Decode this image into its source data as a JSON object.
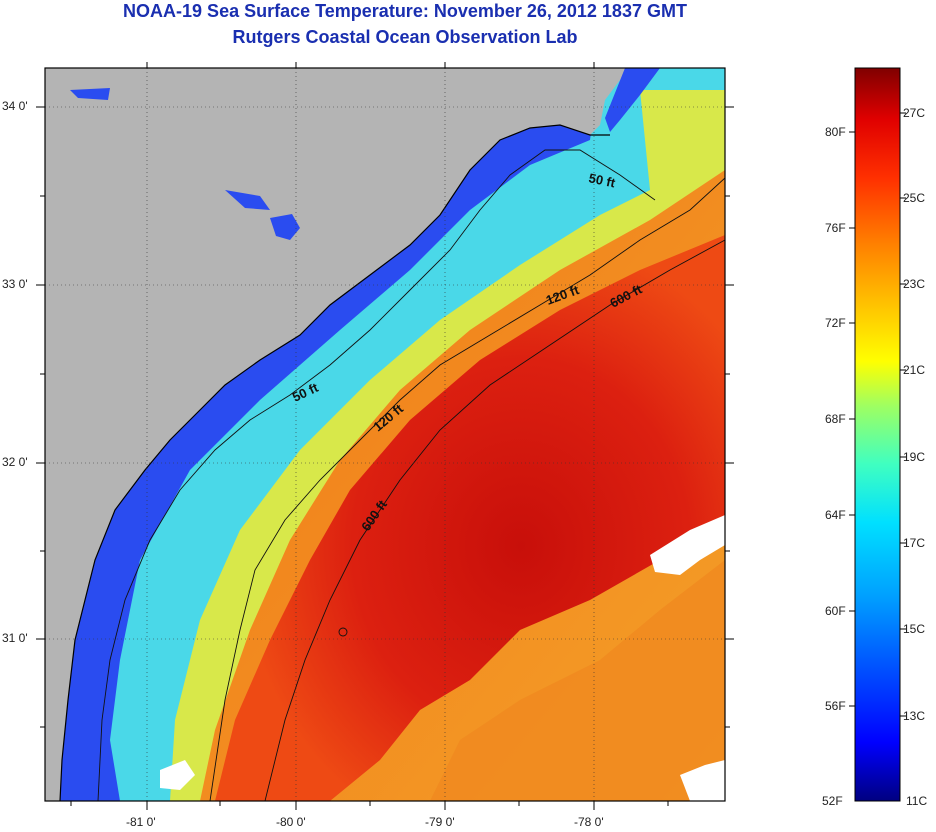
{
  "header": {
    "title": "NOAA-19 Sea Surface Temperature:  November 26, 2012 1837 GMT",
    "subtitle": "Rutgers Coastal Ocean Observation Lab"
  },
  "map": {
    "lat_labels": [
      "34 0'",
      "33 0'",
      "32 0'",
      "31 0'"
    ],
    "lon_labels": [
      "-81 0'",
      "-80 0'",
      "-79 0'",
      "-78 0'"
    ],
    "isobath_labels": [
      "50 ft",
      "50 ft",
      "120 ft",
      "120 ft",
      "600 ft",
      "600 ft"
    ],
    "colors": {
      "land": "#b4b4b4",
      "cloud": "#ffffff",
      "coast_nearshore": "#1e3cff",
      "shelf": "#46e6e6",
      "midshelf": "#e6e646",
      "gulfstream": "#dc1e0a",
      "offshore": "#f08c1e"
    }
  },
  "colorbar": {
    "fahrenheit_labels": [
      "80F",
      "76F",
      "72F",
      "68F",
      "64F",
      "60F",
      "56F",
      "52F"
    ],
    "celsius_labels": [
      "27C",
      "25C",
      "23C",
      "21C",
      "19C",
      "17C",
      "15C",
      "13C",
      "11C"
    ],
    "gradient": [
      "#000080",
      "#0000ff",
      "#0050ff",
      "#00a0ff",
      "#00e0ff",
      "#40ffc0",
      "#a0ff60",
      "#ffff00",
      "#ffc000",
      "#ff8000",
      "#ff3000",
      "#e00000",
      "#800000"
    ]
  }
}
